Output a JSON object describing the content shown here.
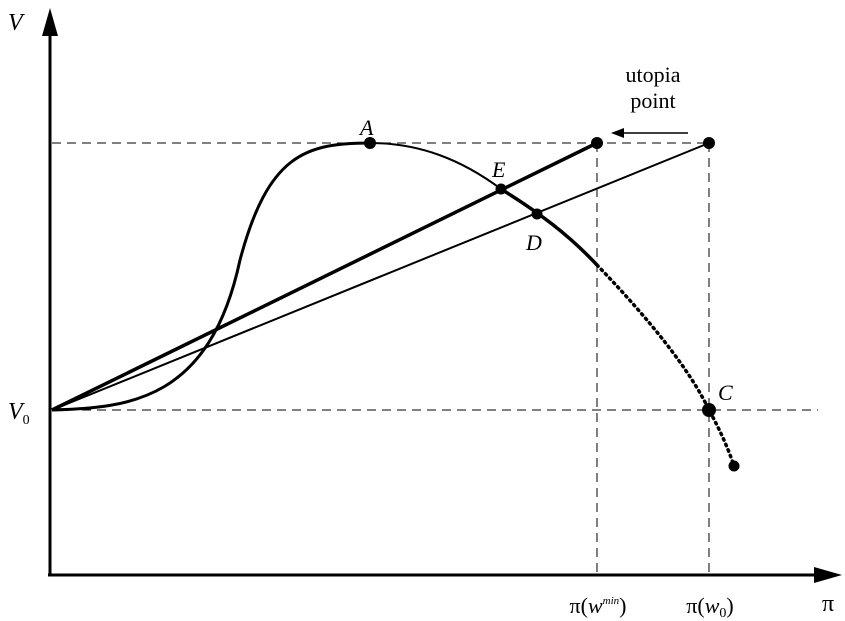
{
  "axes": {
    "y_label": "V",
    "x_label": "π",
    "v0_label": "V",
    "v0_sub": "0"
  },
  "points": {
    "A": "A",
    "E": "E",
    "D": "D",
    "C": "C"
  },
  "annotation": {
    "line1": "utopia",
    "line2": "point"
  },
  "ticks": {
    "wmin_prefix": "π(",
    "wmin_var": "w",
    "wmin_sup": "min",
    "wmin_close": ")",
    "w0_prefix": "π(",
    "w0_var": "w",
    "w0_sub": "0",
    "w0_close": ")"
  },
  "colors": {
    "ink": "#000000",
    "background": "#ffffff"
  }
}
